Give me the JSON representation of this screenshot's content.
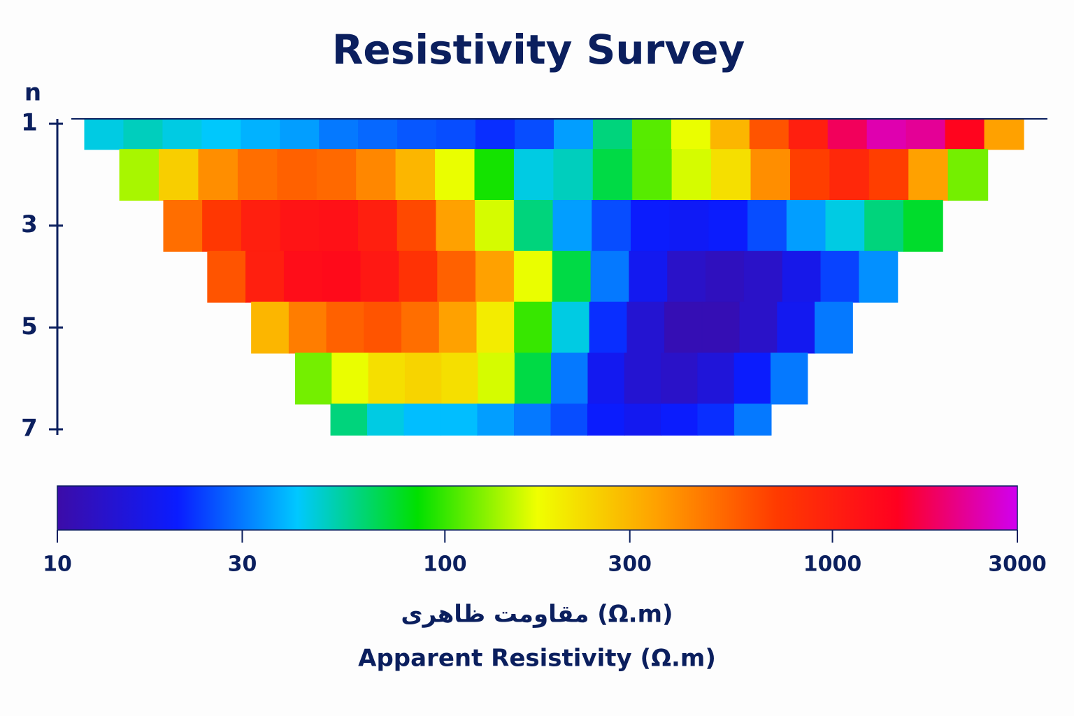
{
  "chart_data": {
    "type": "heatmap",
    "title": "Resistivity Survey",
    "y_label": "n",
    "y": [
      1,
      2,
      3,
      4,
      5,
      6,
      7
    ],
    "ylim": [
      1,
      7
    ],
    "yticks": [
      1,
      3,
      5,
      7
    ],
    "values": [
      [
        45,
        50,
        45,
        42,
        38,
        35,
        30,
        28,
        26,
        25,
        22,
        25,
        35,
        60,
        110,
        170,
        300,
        600,
        1000,
        1800,
        2400,
        2200,
        1400,
        350
      ],
      [
        140,
        250,
        400,
        500,
        550,
        520,
        420,
        300,
        170,
        90,
        45,
        50,
        70,
        110,
        160,
        220,
        400,
        700,
        900,
        700,
        350,
        120
      ],
      [
        500,
        750,
        1000,
        1150,
        1200,
        1000,
        650,
        350,
        160,
        60,
        35,
        25,
        20,
        19,
        20,
        25,
        35,
        45,
        60,
        75
      ],
      [
        600,
        1000,
        1250,
        1300,
        1100,
        800,
        550,
        350,
        170,
        70,
        30,
        18,
        13,
        12,
        13,
        17,
        24,
        33
      ],
      [
        300,
        450,
        550,
        600,
        500,
        350,
        200,
        100,
        45,
        22,
        14,
        11,
        11,
        13,
        18,
        30
      ],
      [
        120,
        170,
        220,
        240,
        220,
        160,
        70,
        30,
        18,
        14,
        13,
        15,
        20,
        30
      ],
      [
        60,
        45,
        40,
        40,
        35,
        30,
        25,
        20,
        18,
        20,
        22,
        30
      ]
    ],
    "colorbar": {
      "colors": [
        "#3c0ca8",
        "#0a1cff",
        "#00c8ff",
        "#00e000",
        "#f0ff00",
        "#ffa000",
        "#ff3a00",
        "#ff0020",
        "#d000f0"
      ],
      "clim": [
        10,
        3000
      ],
      "ticks": [
        10,
        30,
        100,
        300,
        1000,
        3000
      ],
      "log": true,
      "labels": [
        "مقاومت ظاهری (Ω.m)",
        "Apparent Resistivity (Ω.m)"
      ]
    }
  }
}
